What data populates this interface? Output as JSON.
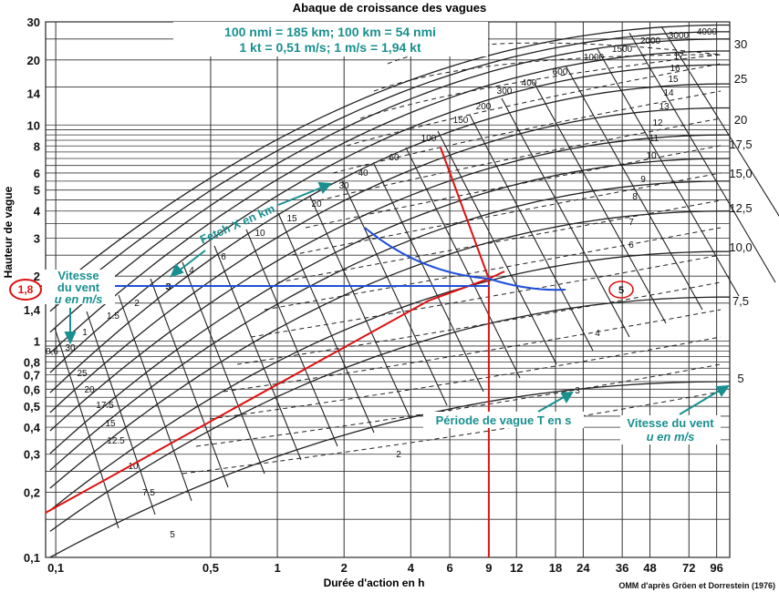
{
  "chart_data": {
    "type": "line",
    "title": "Abaque de croissance des vagues",
    "conversion_line1": "100 nmi = 185 km; 100 km = 54 nmi",
    "conversion_line2": "1 kt = 0,51 m/s; 1 m/s = 1,94 kt",
    "xlabel": "Durée d'action en h",
    "ylabel": "Hauteur de vague",
    "x_scale": "log",
    "y_scale": "log",
    "xlim": [
      0.09,
      110
    ],
    "ylim": [
      0.1,
      30
    ],
    "x_ticks": [
      "0,1",
      "0,5",
      "1",
      "2",
      "4",
      "6",
      "9",
      "12",
      "18",
      "24",
      "36",
      "48",
      "72",
      "96"
    ],
    "x_tick_values": [
      0.1,
      0.5,
      1,
      2,
      4,
      6,
      9,
      12,
      18,
      24,
      36,
      48,
      72,
      96
    ],
    "y_ticks": [
      "0,1",
      "0,2",
      "0,3",
      "0,4",
      "0,5",
      "0,6",
      "0,7",
      "0,8",
      "1",
      "1,4",
      "2",
      "3",
      "4",
      "5",
      "6",
      "8",
      "10",
      "14",
      "20",
      "30"
    ],
    "y_tick_values": [
      0.1,
      0.2,
      0.3,
      0.4,
      0.5,
      0.6,
      0.7,
      0.8,
      1,
      1.4,
      2,
      3,
      4,
      5,
      6,
      8,
      10,
      14,
      20,
      30
    ],
    "wind_speed_right_labels": [
      "30",
      "25",
      "20",
      "17,5",
      "15,0",
      "12,5",
      "10,0",
      "7,5",
      "5"
    ],
    "wind_speed_right_values": [
      30,
      25,
      20,
      17.5,
      15,
      12.5,
      10,
      7.5,
      5
    ],
    "fetch_labels": [
      "3",
      "4",
      "6",
      "10",
      "15",
      "20",
      "30",
      "40",
      "60",
      "100",
      "150",
      "200",
      "300",
      "400",
      "600",
      "1000",
      "1500",
      "2000",
      "3000",
      "4000"
    ],
    "period_labels": [
      "2",
      "3",
      "4",
      "5",
      "6",
      "7",
      "8",
      "9",
      "10",
      "11",
      "12",
      "13",
      "14",
      "15",
      "16",
      "17"
    ],
    "wind_curve_labels": [
      "0,6",
      "1",
      "1.5",
      "2",
      "3",
      "5",
      "7.5",
      "10",
      "12.5",
      "15",
      "17.5",
      "20",
      "25",
      "30"
    ],
    "annotations": {
      "fetch_label": "Fetch X en km",
      "wind_left_line1": "Vitesse",
      "wind_left_line2": "du vent",
      "wind_left_line3": "u en m/s",
      "period_label": "Période de vague T en s",
      "wind_right_line1": "Vitesse du vent",
      "wind_right_line2": "u en m/s",
      "height_marker": "1,8",
      "period_marker": "5"
    },
    "example": {
      "wave_height": 1.8,
      "duration_h": 9,
      "period_s": 5
    },
    "credit": "OMM d'après Gröen et Dorrestein (1976)",
    "colors": {
      "annotation": "#1a8f8f",
      "example_red": "#dd1111",
      "example_blue": "#1f4fd8"
    }
  }
}
